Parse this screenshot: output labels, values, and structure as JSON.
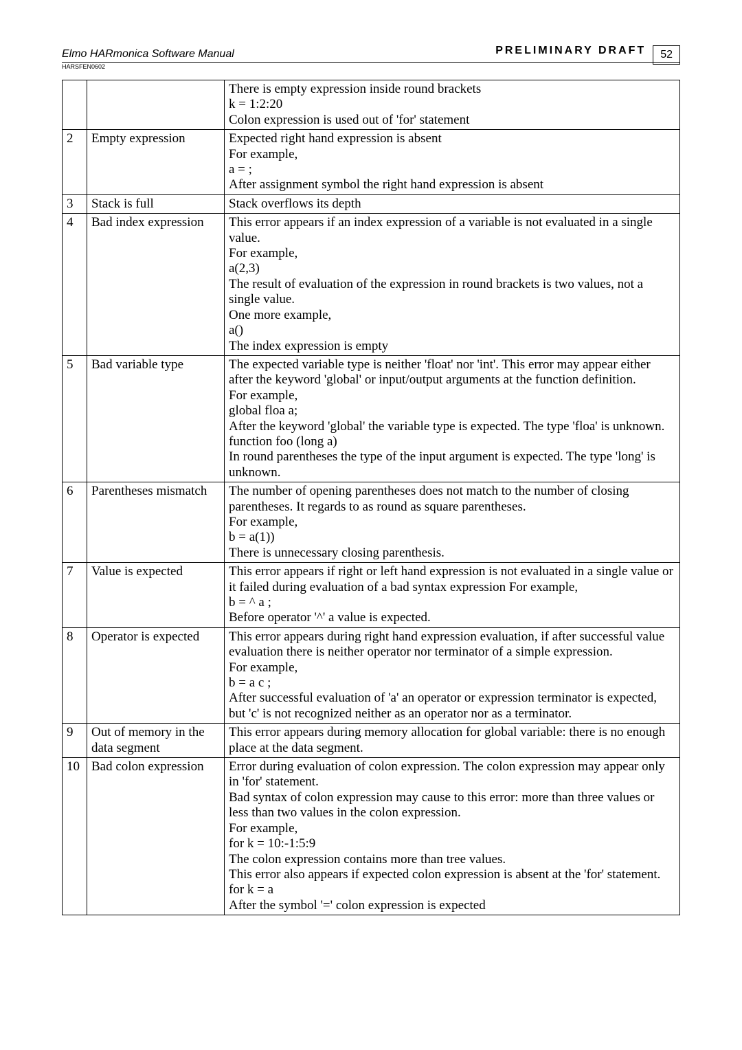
{
  "header": {
    "title_left": "Elmo HARmonica Software Manual",
    "title_right": "PRELIMINARY DRAFT",
    "page_number": "52",
    "doc_id": "HARSFEN0602"
  },
  "rows": [
    {
      "num": "",
      "name": "",
      "desc": [
        "There is empty expression inside round brackets",
        "k = 1:2:20",
        "Colon expression is used out of 'for' statement"
      ]
    },
    {
      "num": "2",
      "name": "Empty expression",
      "desc": [
        "Expected right hand expression is absent",
        "For example,",
        "a = ;",
        "After assignment symbol the right hand expression is absent"
      ]
    },
    {
      "num": "3",
      "name": "Stack is full",
      "desc": [
        "Stack overflows its depth"
      ]
    },
    {
      "num": "4",
      "name": "Bad index expression",
      "desc": [
        "This error appears if an index expression of a variable is not evaluated in a single value.",
        "For example,",
        "a(2,3)",
        "The result of evaluation of the expression in round brackets is two values, not a single value.",
        "One more example,",
        "a()",
        "The index expression is empty"
      ]
    },
    {
      "num": "5",
      "name": "Bad variable type",
      "desc": [
        "The expected variable type is neither 'float' nor 'int'. This error may appear either after the keyword 'global' or input/output arguments at the function definition.",
        "For example,",
        "global floa a;",
        "After the keyword 'global' the variable type is expected. The type 'floa' is unknown.",
        "function foo (long a)",
        "In round parentheses the type of the input argument is expected. The type 'long' is unknown."
      ]
    },
    {
      "num": "6",
      "name": "Parentheses mismatch",
      "desc": [
        "The number of opening parentheses does not match to the number of closing parentheses. It regards to as round as square parentheses.",
        "For example,",
        "b = a(1))",
        "There is unnecessary closing parenthesis."
      ]
    },
    {
      "num": "7",
      "name": "Value is expected",
      "desc": [
        "This error appears if right or left hand expression is not evaluated in a single value or it failed during evaluation of a bad syntax expression For example,",
        "b = ^ a ;",
        "Before operator '^' a value is expected."
      ]
    },
    {
      "num": "8",
      "name": "Operator is expected",
      "desc": [
        "This error appears during right hand expression evaluation, if after successful value evaluation there is neither operator nor terminator of a simple expression.",
        "For example,",
        "b = a c ;",
        "After successful evaluation of 'a' an operator or expression terminator is expected, but 'c' is not recognized neither as an operator nor as a terminator."
      ]
    },
    {
      "num": "9",
      "name": "Out of memory in the data segment",
      "desc": [
        "This error appears during memory allocation for global variable: there is no enough place at the data segment."
      ]
    },
    {
      "num": "10",
      "name": "Bad colon expression",
      "desc": [
        "Error during evaluation of colon expression. The colon expression may appear only in 'for' statement.",
        "Bad syntax of colon expression may cause to this error: more than three values or less than two values in the colon expression.",
        "For example,",
        "for k = 10:-1:5:9",
        "The colon expression contains more than tree values.",
        "This error also appears if expected colon expression is absent at the 'for' statement.",
        "for k = a",
        "After the symbol '=' colon expression is expected"
      ]
    }
  ]
}
